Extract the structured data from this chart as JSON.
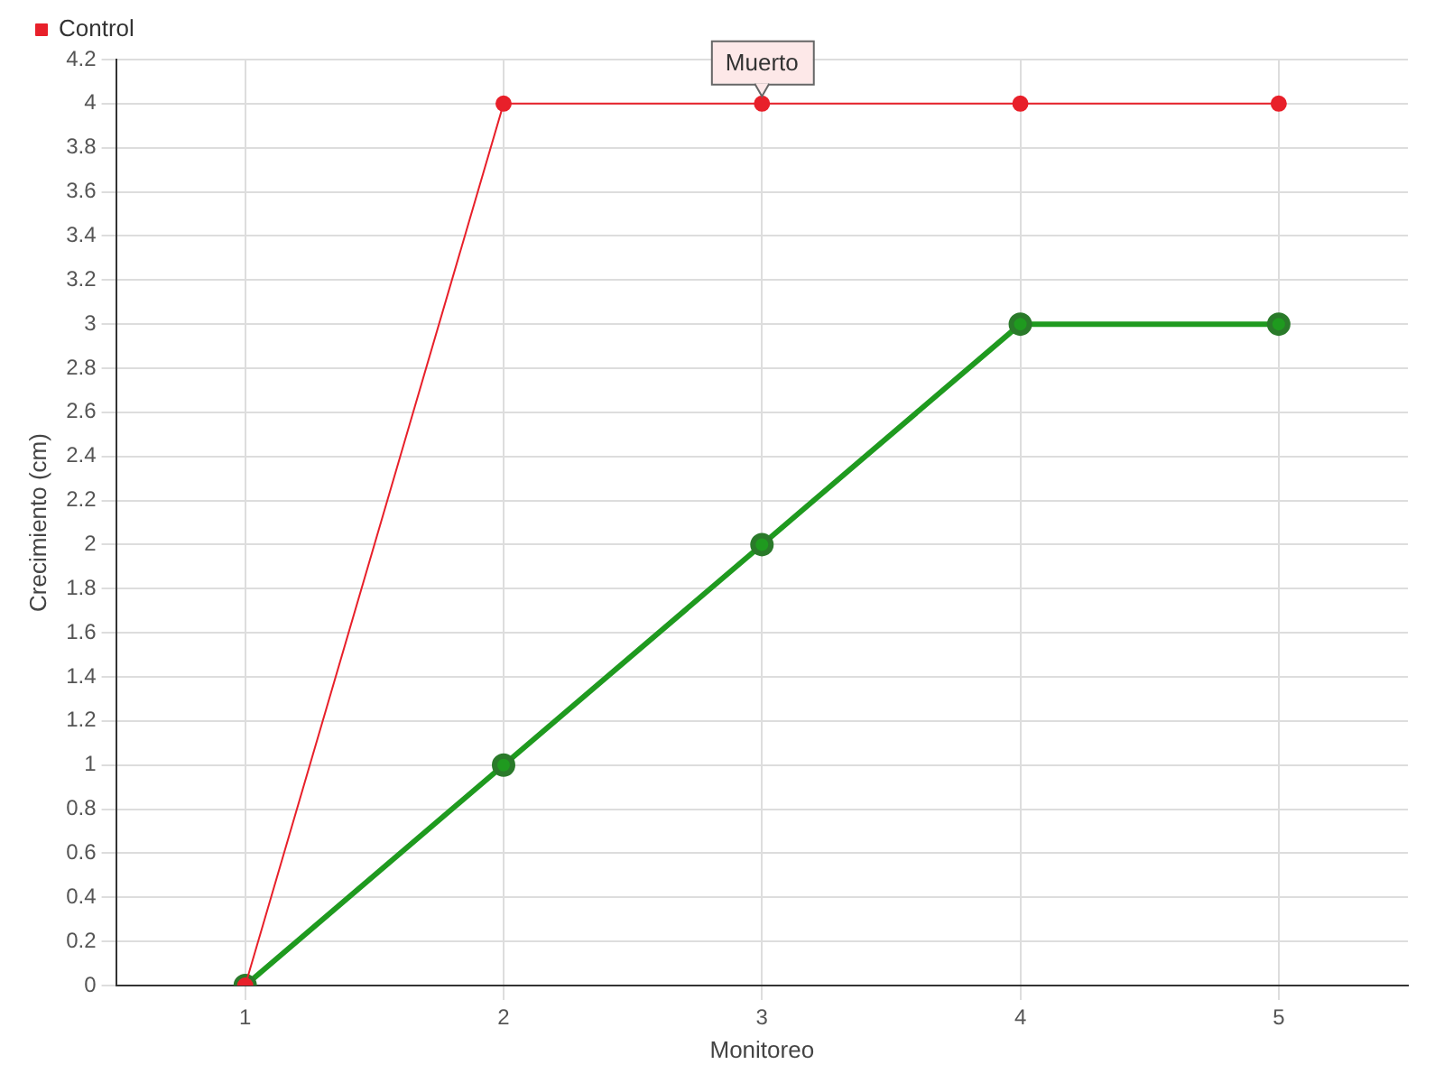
{
  "chart_data": {
    "type": "line",
    "xlabel": "Monitoreo",
    "ylabel": "Crecimiento (cm)",
    "categories": [
      "1",
      "2",
      "3",
      "4",
      "5"
    ],
    "series": [
      {
        "color": "#1f9a1f",
        "values": [
          0,
          1,
          2,
          3,
          3
        ]
      },
      {
        "name": "Control",
        "color": "#e8202a",
        "values": [
          0,
          4,
          4,
          4,
          4
        ]
      }
    ],
    "ylim": [
      0,
      4.2
    ],
    "yticks": [
      0,
      0.2,
      0.4,
      0.6,
      0.8,
      1,
      1.2,
      1.4,
      1.6,
      1.8,
      2,
      2.2,
      2.4,
      2.6,
      2.8,
      3,
      3.2,
      3.4,
      3.6,
      3.8,
      4,
      4.2
    ],
    "grid": true,
    "legend": "top left",
    "marker": "circle",
    "line_style": "solid",
    "annotations": [
      {
        "text": "Muerto",
        "x": "3",
        "y": 4
      }
    ]
  }
}
